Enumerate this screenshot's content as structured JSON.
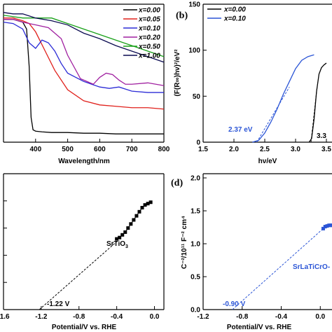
{
  "panels": {
    "a": {
      "label": "",
      "xlabel": "Wavelength/nm",
      "ylabel": "",
      "x_ticks": [
        "400",
        "500",
        "600",
        "700",
        "800"
      ],
      "legend": [
        "x=0.00",
        "x=0.05",
        "x=0.10",
        "x=0.20",
        "x=0.50",
        "x=1.00"
      ]
    },
    "b": {
      "label": "(b)",
      "xlabel": "hν/eV",
      "ylabel": "(F(R∞)hν)²/eV²",
      "x_ticks": [
        "1.5",
        "2.0",
        "2.5",
        "3.0",
        "3.5"
      ],
      "y_ticks": [
        "0",
        "50",
        "100",
        "150"
      ],
      "legend": [
        "x=0.00",
        "x=0.10"
      ],
      "annotations": [
        "2.37 eV",
        "3.3"
      ]
    },
    "c": {
      "label": "",
      "xlabel": "Potential/V vs. RHE",
      "x_ticks": [
        "-1.6",
        "-1.2",
        "-0.8",
        "-0.4",
        "0.0"
      ],
      "annotations": [
        "SrTiO3",
        "-1.22 V"
      ]
    },
    "d": {
      "label": "(d)",
      "xlabel": "Potential/V vs. RHE",
      "ylabel": "C⁻²/10¹¹ F⁻² cm⁴",
      "x_ticks": [
        "-1.2",
        "-0.8",
        "-0.4",
        "0.0"
      ],
      "y_ticks": [
        "0.0",
        "0.5",
        "1.0",
        "1.5",
        "2.0"
      ],
      "annotations": [
        "SrLaTiCrO-",
        "-0.90 V"
      ]
    }
  },
  "chart_data": [
    {
      "panel": "a",
      "type": "line",
      "xlabel": "Wavelength/nm",
      "ylabel": "",
      "xlim": [
        300,
        800
      ],
      "ylim": [
        0,
        1
      ],
      "series": [
        {
          "name": "x=0.00",
          "color": "#000000",
          "x": [
            300,
            330,
            360,
            372,
            380,
            386,
            392,
            400,
            420,
            450,
            500,
            550,
            600,
            650,
            700,
            750,
            800
          ],
          "y": [
            0.89,
            0.89,
            0.87,
            0.82,
            0.55,
            0.18,
            0.09,
            0.08,
            0.075,
            0.07,
            0.07,
            0.065,
            0.065,
            0.06,
            0.06,
            0.06,
            0.06
          ]
        },
        {
          "name": "x=0.05",
          "color": "#e0201b",
          "x": [
            300,
            330,
            360,
            380,
            400,
            430,
            460,
            500,
            550,
            600,
            650,
            700,
            750,
            800
          ],
          "y": [
            0.9,
            0.9,
            0.88,
            0.86,
            0.8,
            0.66,
            0.52,
            0.38,
            0.3,
            0.27,
            0.26,
            0.25,
            0.25,
            0.24
          ]
        },
        {
          "name": "x=0.10",
          "color": "#2b2bd6",
          "x": [
            300,
            330,
            360,
            380,
            400,
            420,
            440,
            460,
            480,
            500,
            550,
            600,
            630,
            660,
            700,
            750,
            800
          ],
          "y": [
            0.87,
            0.86,
            0.82,
            0.72,
            0.68,
            0.74,
            0.72,
            0.66,
            0.57,
            0.5,
            0.44,
            0.4,
            0.39,
            0.4,
            0.37,
            0.36,
            0.36
          ]
        },
        {
          "name": "x=0.20",
          "color": "#a020a0",
          "x": [
            300,
            330,
            360,
            380,
            400,
            440,
            480,
            500,
            540,
            580,
            600,
            620,
            640,
            660,
            680,
            700,
            750,
            800
          ],
          "y": [
            0.89,
            0.89,
            0.87,
            0.86,
            0.85,
            0.83,
            0.75,
            0.63,
            0.46,
            0.42,
            0.47,
            0.5,
            0.49,
            0.45,
            0.42,
            0.42,
            0.43,
            0.41
          ]
        },
        {
          "name": "x=0.50",
          "color": "#18a018",
          "x": [
            300,
            330,
            360,
            400,
            450,
            500,
            550,
            600,
            650,
            700,
            750,
            800
          ],
          "y": [
            0.92,
            0.91,
            0.9,
            0.9,
            0.9,
            0.86,
            0.82,
            0.78,
            0.74,
            0.7,
            0.66,
            0.62
          ]
        },
        {
          "name": "x=1.00",
          "color": "#0a0a50",
          "x": [
            300,
            330,
            360,
            400,
            450,
            500,
            550,
            600,
            650,
            700,
            750,
            800
          ],
          "y": [
            0.94,
            0.93,
            0.93,
            0.9,
            0.88,
            0.85,
            0.79,
            0.75,
            0.7,
            0.66,
            0.62,
            0.58
          ]
        }
      ]
    },
    {
      "panel": "b",
      "type": "line",
      "xlabel": "hν/eV",
      "ylabel": "(F(R∞)hν)²/eV²",
      "xlim": [
        1.5,
        3.5
      ],
      "ylim": [
        0,
        150
      ],
      "series": [
        {
          "name": "x=0.00",
          "color": "#000000",
          "x": [
            3.22,
            3.26,
            3.3,
            3.34,
            3.38,
            3.42,
            3.46,
            3.5
          ],
          "y": [
            0,
            4,
            25,
            55,
            74,
            81,
            84,
            86
          ]
        },
        {
          "name": "x=0.10",
          "color": "#2b55d6",
          "x": [
            2.3,
            2.4,
            2.5,
            2.6,
            2.7,
            2.8,
            2.9,
            3.0,
            3.1,
            3.2,
            3.3
          ],
          "y": [
            0,
            2,
            10,
            22,
            36,
            52,
            66,
            80,
            89,
            93,
            95
          ]
        }
      ],
      "extrapolations": [
        {
          "x": [
            2.37,
            2.9
          ],
          "y": [
            0,
            60
          ],
          "color": "#2b55d6"
        },
        {
          "x": [
            3.25,
            3.35
          ],
          "y": [
            0,
            60
          ],
          "color": "#000000"
        }
      ]
    },
    {
      "panel": "c",
      "type": "scatter",
      "xlabel": "Potential/V vs. RHE",
      "xlim": [
        -1.6,
        0.1
      ],
      "series": [
        {
          "name": "",
          "color": "#000000",
          "x": [
            -0.4,
            -0.37,
            -0.34,
            -0.31,
            -0.28,
            -0.25,
            -0.22,
            -0.19,
            -0.16,
            -0.13,
            -0.1,
            -0.07,
            -0.04
          ],
          "y": [
            0.52,
            0.53,
            0.55,
            0.57,
            0.6,
            0.63,
            0.66,
            0.69,
            0.72,
            0.75,
            0.77,
            0.78,
            0.79
          ]
        }
      ],
      "extrapolations": [
        {
          "x": [
            -1.22,
            -0.4
          ],
          "y": [
            0.0,
            0.5
          ],
          "color": "#000000"
        }
      ]
    },
    {
      "panel": "d",
      "type": "scatter",
      "xlabel": "Potential/V vs. RHE",
      "ylabel": "C⁻²/10¹¹ F⁻² cm⁴",
      "xlim": [
        -1.2,
        0.12
      ],
      "ylim": [
        0,
        2.0
      ],
      "series": [
        {
          "name": "",
          "color": "#2b55d6",
          "x": [
            0.03,
            0.05,
            0.07,
            0.09,
            0.11,
            0.12
          ],
          "y": [
            1.23,
            1.26,
            1.27,
            1.28,
            1.28,
            1.28
          ]
        }
      ],
      "extrapolations": [
        {
          "x": [
            -0.9,
            0.03
          ],
          "y": [
            0.0,
            1.23
          ],
          "color": "#2b55d6"
        }
      ]
    }
  ]
}
